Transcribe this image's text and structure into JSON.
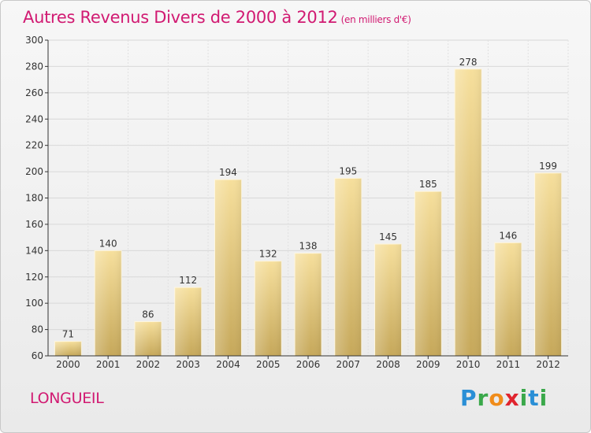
{
  "header": {
    "title": "Autres Revenus Divers de 2000 à 2012",
    "subtitle": "(en milliers d'€)"
  },
  "footer": {
    "commune": "LONGUEIL",
    "logo": {
      "p": "P",
      "r": "r",
      "o": "o",
      "x": "x",
      "i": "i",
      "t": "t",
      "i2": "i"
    }
  },
  "colors": {
    "title": "#d11a72",
    "bar_top": "#f5dc96",
    "bar_bottom": "#c8aa5a",
    "grid": "#d6d6d6"
  },
  "chart_data": {
    "type": "bar",
    "categories": [
      "2000",
      "2001",
      "2002",
      "2003",
      "2004",
      "2005",
      "2006",
      "2007",
      "2008",
      "2009",
      "2010",
      "2011",
      "2012"
    ],
    "values": [
      71,
      140,
      86,
      112,
      194,
      132,
      138,
      195,
      145,
      185,
      278,
      146,
      199
    ],
    "ylim": [
      60,
      300
    ],
    "yticks": [
      60,
      80,
      100,
      120,
      140,
      160,
      180,
      200,
      220,
      240,
      260,
      280,
      300
    ],
    "grid": true
  }
}
